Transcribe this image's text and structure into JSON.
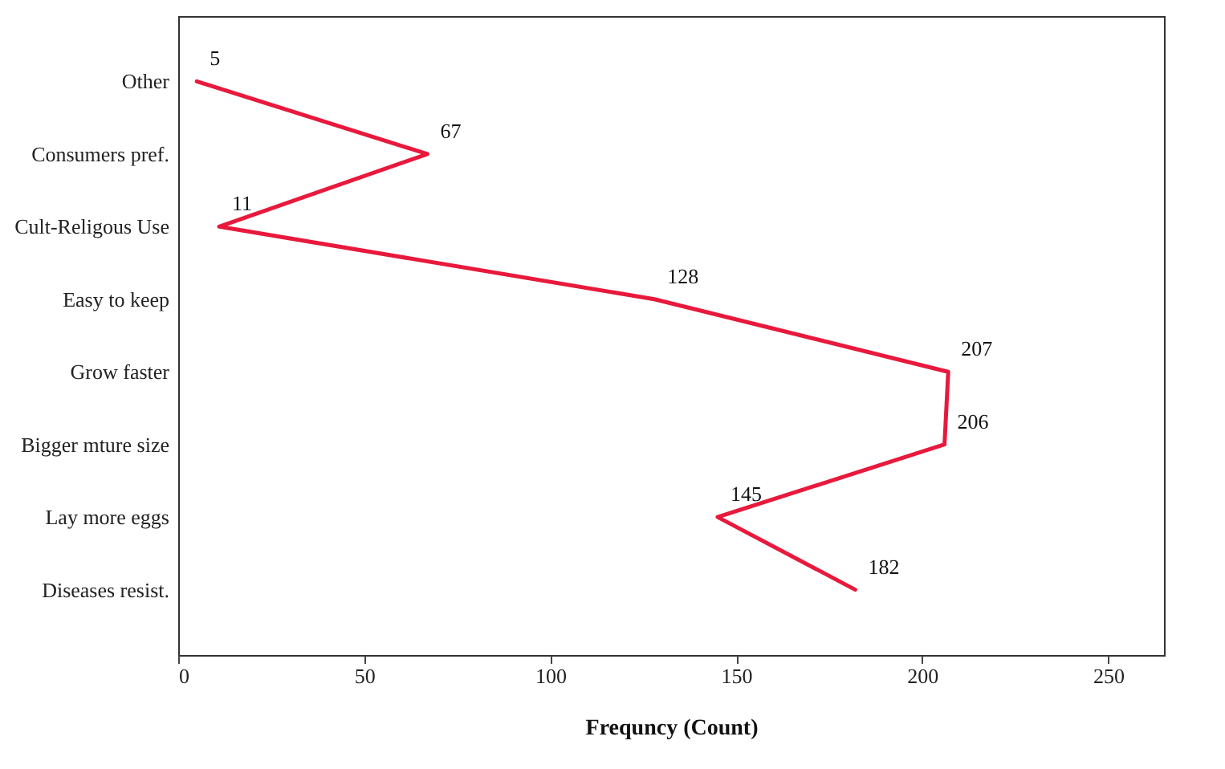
{
  "chart_data": {
    "type": "line",
    "orientation": "horizontal",
    "xlabel": "Frequncy (Count)",
    "categories": [
      "Other",
      "Consumers pref.",
      "Cult-Religous Use",
      "Easy to keep",
      "Grow faster",
      "Bigger mture size",
      "Lay more eggs",
      "Diseases resist."
    ],
    "series": [
      {
        "color": "#e8193c",
        "values": [
          5,
          67,
          11,
          128,
          207,
          206,
          145,
          182
        ]
      }
    ],
    "xlim": [
      0,
      265
    ],
    "xticks": [
      0,
      50,
      100,
      150,
      200,
      250
    ],
    "data_labels": true
  }
}
